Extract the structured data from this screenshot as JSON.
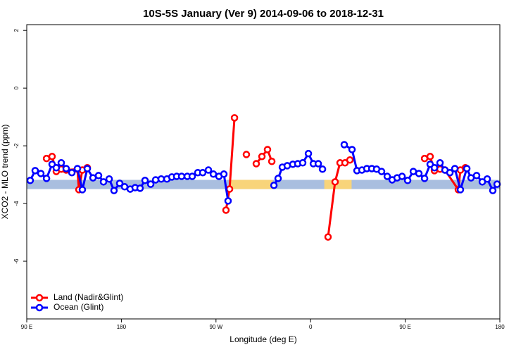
{
  "chart_data": {
    "type": "line",
    "title": "10S-5S January (Ver 9)   2014-09-06 to 2018-12-31",
    "xlabel": "Longitude (deg E)",
    "ylabel": "XCO2 - MLO trend (ppm)",
    "xlim": [
      90,
      540
    ],
    "ylim": [
      -8.0,
      2.2
    ],
    "xticks": [
      {
        "value": 90,
        "label": "90 E"
      },
      {
        "value": 180,
        "label": "180"
      },
      {
        "value": 270,
        "label": "90 W"
      },
      {
        "value": 360,
        "label": "0"
      },
      {
        "value": 450,
        "label": "90 E"
      },
      {
        "value": 540,
        "label": "180"
      }
    ],
    "yticks": [
      2,
      0,
      -2,
      -4,
      -6
    ],
    "legend": "bottom-left",
    "band": {
      "ylim": [
        -3.5,
        -3.18
      ],
      "color": "#a9bedf",
      "land_color": "#f8d47a",
      "land_ranges": [
        [
          284,
          324
        ],
        [
          373,
          399
        ]
      ]
    },
    "series": [
      {
        "name": "Land (Nadir&Glint)",
        "color": "#ff0000",
        "x": [
          108.8,
          114.1,
          118.1,
          122.8,
          127.5,
          138.2,
          139.6,
          142.9,
          147.6,
          null,
          279.5,
          282.9,
          287.6,
          null,
          298.9,
          null,
          308.3,
          313.7,
          319.0,
          323.1,
          null,
          376.6,
          383.3,
          388.0,
          392.7,
          397.4,
          null,
          468.4,
          473.7,
          477.8,
          483.1,
          487.8,
          500.5,
          502.5,
          507.2
        ],
        "values": [
          -2.44,
          -2.37,
          -2.89,
          -2.81,
          -2.84,
          -2.81,
          -3.52,
          -2.84,
          -2.76,
          null,
          -4.23,
          -3.5,
          -1.03,
          null,
          -2.3,
          null,
          -2.62,
          -2.37,
          -2.13,
          -2.54,
          null,
          -5.16,
          -3.25,
          -2.59,
          -2.59,
          -2.49,
          null,
          -2.44,
          -2.37,
          -2.86,
          -2.81,
          -2.84,
          -3.52,
          -2.84,
          -2.76
        ]
      },
      {
        "name": "Ocean (Glint)",
        "color": "#0000ff",
        "x": [
          93.3,
          98.0,
          103.4,
          108.8,
          114.1,
          118.1,
          122.8,
          127.5,
          132.9,
          138.2,
          142.9,
          147.6,
          153.0,
          158.3,
          163.0,
          168.4,
          173.0,
          178.4,
          183.1,
          188.4,
          193.1,
          197.8,
          202.5,
          207.9,
          212.6,
          217.9,
          223.3,
          228.0,
          232.6,
          237.3,
          242.7,
          247.4,
          252.7,
          257.4,
          262.8,
          267.5,
          272.8,
          277.5,
          281.5,
          null,
          325.1,
          329.1,
          333.1,
          337.8,
          343.1,
          347.8,
          352.5,
          357.9,
          362.6,
          367.3,
          371.3,
          null,
          392.0,
          399.4,
          404.1,
          408.8,
          413.5,
          418.2,
          422.8,
          427.5,
          432.9,
          437.6,
          442.3,
          447.0,
          452.3,
          457.7,
          463.0,
          468.4,
          473.7,
          477.8,
          483.1,
          487.8,
          492.5,
          497.2,
          502.5,
          508.6,
          512.6,
          517.9,
          523.3,
          528.0,
          533.3,
          537.4
        ],
        "values": [
          -3.2,
          -2.86,
          -2.96,
          -3.13,
          -2.64,
          -2.76,
          -2.59,
          -2.79,
          -2.93,
          -2.79,
          -3.52,
          -2.79,
          -3.11,
          -3.03,
          -3.25,
          -3.15,
          -3.55,
          -3.3,
          -3.42,
          -3.5,
          -3.45,
          -3.47,
          -3.2,
          -3.33,
          -3.18,
          -3.15,
          -3.15,
          -3.08,
          -3.06,
          -3.06,
          -3.06,
          -3.06,
          -2.93,
          -2.93,
          -2.84,
          -2.98,
          -3.06,
          -2.98,
          -3.91,
          null,
          -3.37,
          -3.13,
          -2.74,
          -2.69,
          -2.64,
          -2.62,
          -2.59,
          -2.27,
          -2.62,
          -2.62,
          -2.81,
          null,
          -1.96,
          -2.13,
          -2.86,
          -2.84,
          -2.79,
          -2.79,
          -2.81,
          -2.89,
          -3.06,
          -3.18,
          -3.11,
          -3.06,
          -3.2,
          -2.89,
          -2.96,
          -3.13,
          -2.64,
          -2.76,
          -2.59,
          -2.84,
          -2.93,
          -2.79,
          -3.52,
          -2.79,
          -3.11,
          -3.03,
          -3.25,
          -3.15,
          -3.55,
          -3.33
        ]
      }
    ]
  }
}
